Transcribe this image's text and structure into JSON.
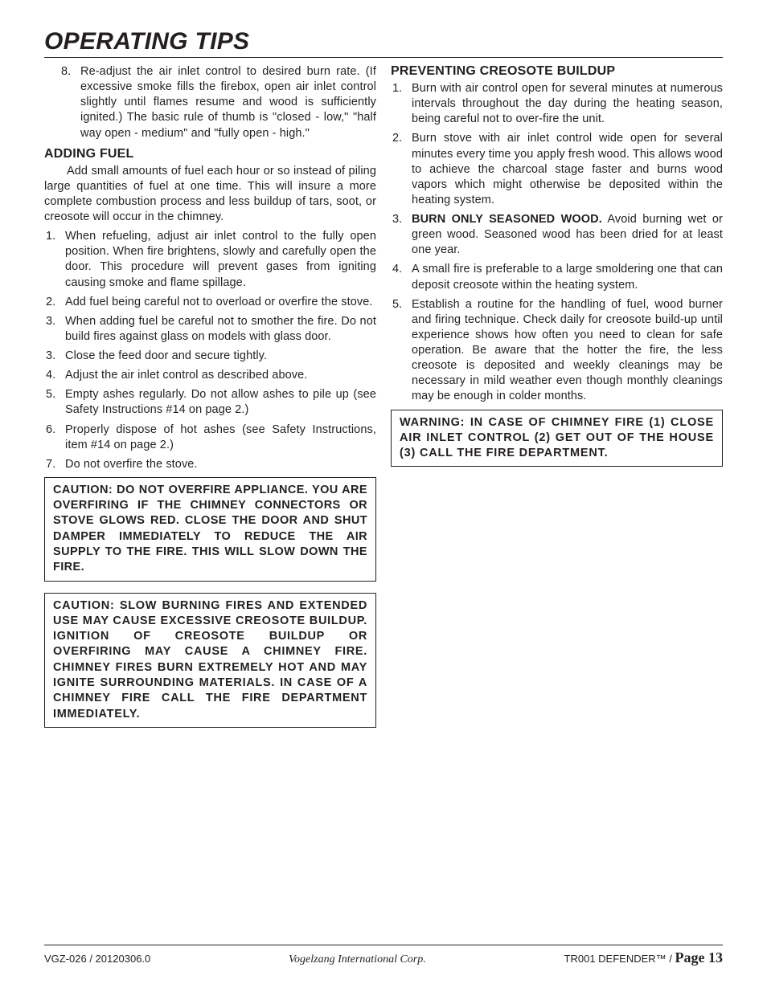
{
  "page_title": "OPERATING TIPS",
  "col1": {
    "item8": {
      "num": "8.",
      "text": "Re-adjust the air inlet control to desired burn rate. (If excessive smoke fills the firebox, open air inlet control slightly until flames resume and wood is sufficiently ignited.) The basic rule of thumb is \"closed - low,\" \"half way open - medium\" and \"fully open - high.\""
    },
    "adding_fuel_heading": "ADDING FUEL",
    "adding_fuel_para": "Add small amounts of fuel each hour or so instead of piling large quantities of fuel at one time. This will insure a more complete combustion process and less buildup of tars, soot, or creosote will occur in the chimney.",
    "af_items": [
      {
        "num": "1.",
        "text": "When refueling, adjust air inlet control to the fully open position. When fire brightens, slowly and carefully open the door. This procedure will prevent gases from igniting causing smoke and flame spillage."
      },
      {
        "num": "2.",
        "text": "Add fuel being careful not to overload or overfire the stove."
      },
      {
        "num": "3.",
        "text": "When adding fuel be careful not to smother the fire. Do not build fires against glass on models with glass door."
      },
      {
        "num": "3.",
        "text": "Close the feed door and secure tightly."
      },
      {
        "num": "4.",
        "text": "Adjust the air inlet control as described above."
      },
      {
        "num": "5.",
        "text": "Empty ashes regularly. Do not allow ashes to pile up (see Safety Instructions #14 on page 2.)"
      },
      {
        "num": "6.",
        "text": "Properly dispose of hot ashes (see Safety Instructions, item #14 on page 2.)"
      },
      {
        "num": "7.",
        "text": "Do not overfire the stove."
      }
    ],
    "caution1": "CAUTION: DO NOT OVERFIRE APPLIANCE. YOU ARE OVERFIRING IF THE CHIMNEY CONNECTORS OR STOVE GLOWS RED. CLOSE THE DOOR AND SHUT DAMPER IMMEDIATELY TO REDUCE THE AIR SUPPLY TO THE FIRE. THIS WILL SLOW DOWN THE FIRE.",
    "caution2": "CAUTION: SLOW BURNING FIRES AND EXTENDED USE MAY CAUSE EXCESSIVE CREOSOTE BUILDUP. IGNITION OF CREOSOTE BUILDUP OR OVERFIRING MAY CAUSE A CHIMNEY FIRE. CHIMNEY FIRES BURN EXTREMELY HOT AND MAY IGNITE SURROUNDING MATERIALS. IN CASE OF A CHIMNEY FIRE CALL THE FIRE DEPARTMENT IMMEDIATELY."
  },
  "col2": {
    "heading": "PREVENTING CREOSOTE BUILDUP",
    "items": [
      {
        "num": "1.",
        "text": "Burn with air control open for several minutes at numerous intervals throughout the day during the heating season, being careful not to over-fire the unit."
      },
      {
        "num": "2.",
        "text": "Burn stove with air inlet control wide open for several minutes every time you apply fresh wood. This allows wood to achieve the charcoal stage faster and burns wood vapors which might otherwise be deposited within the heating system."
      },
      {
        "num": "3.",
        "bold": "BURN ONLY SEASONED WOOD.",
        "text": " Avoid burning wet or green wood. Seasoned wood has been dried for at least one year."
      },
      {
        "num": "4.",
        "text": "A small fire is preferable to a large smoldering one that can deposit creosote within the heating system."
      },
      {
        "num": "5.",
        "text": "Establish a routine for the handling of fuel, wood burner and firing technique. Check daily for creosote build-up until experience shows how often you need to clean for safe operation. Be aware that the hotter the fire, the less creosote is deposited and weekly cleanings may be necessary in mild weather even though monthly cleanings may be enough in colder months."
      }
    ],
    "warning": "WARNING: IN CASE OF CHIMNEY FIRE (1) CLOSE AIR INLET CONTROL (2) GET OUT OF THE HOUSE (3) CALL THE FIRE DEPARTMENT."
  },
  "footer": {
    "left": "VGZ-026 / 20120306.0",
    "center": "Vogelzang International Corp.",
    "right_prefix": "TR001 DEFENDER™ / ",
    "right_page_label": "Page 13"
  }
}
